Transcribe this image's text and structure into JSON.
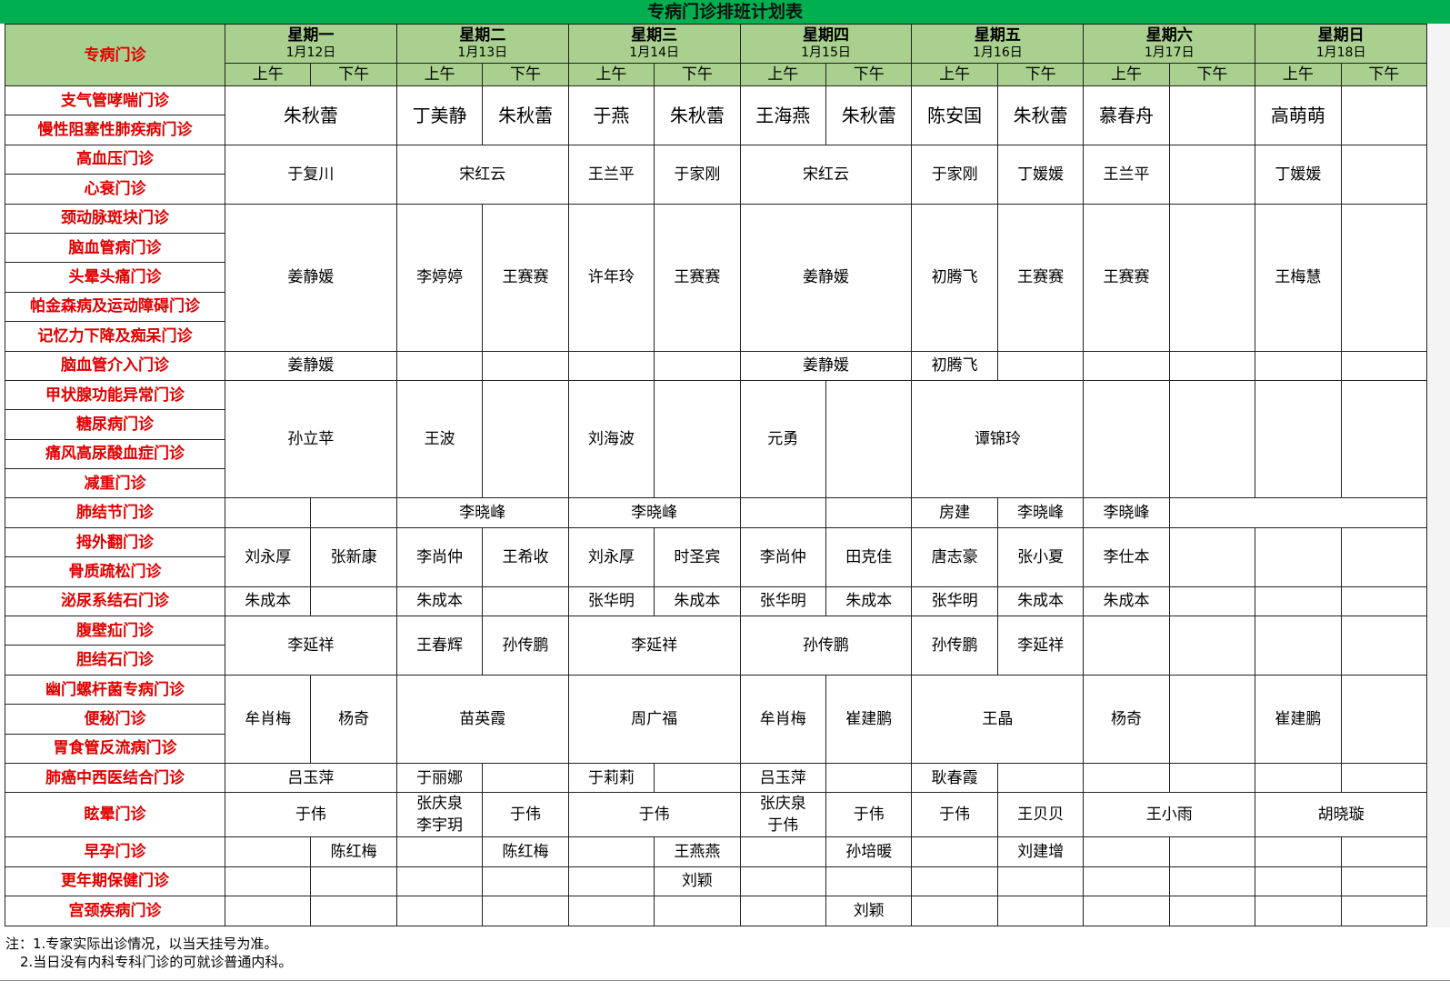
{
  "title": "专病门诊排班计划表",
  "corner_label": "专病门诊",
  "days": [
    {
      "name": "星期一",
      "date": "1月12日"
    },
    {
      "name": "星期二",
      "date": "1月13日"
    },
    {
      "name": "星期三",
      "date": "1月14日"
    },
    {
      "name": "星期四",
      "date": "1月15日"
    },
    {
      "name": "星期五",
      "date": "1月16日"
    },
    {
      "name": "星期六",
      "date": "1月17日"
    },
    {
      "name": "星期日",
      "date": "1月18日"
    }
  ],
  "sessions": [
    "上午",
    "下午"
  ],
  "clinics": [
    "支气管哮喘门诊",
    "慢性阻塞性肺疾病门诊",
    "高血压门诊",
    "心衰门诊",
    "颈动脉斑块门诊",
    "脑血管病门诊",
    "头晕头痛门诊",
    "帕金森病及运动障碍门诊",
    "记忆力下降及痴呆门诊",
    "脑血管介入门诊",
    "甲状腺功能异常门诊",
    "糖尿病门诊",
    "痛风高尿酸血症门诊",
    "减重门诊",
    "肺结节门诊",
    "拇外翻门诊",
    "骨质疏松门诊",
    "泌尿系结石门诊",
    "腹壁疝门诊",
    "胆结石门诊",
    "幽门螺杆菌专病门诊",
    "便秘门诊",
    "胃食管反流病门诊",
    "肺癌中西医结合门诊",
    "眩晕门诊",
    "早孕门诊",
    "更年期保健门诊",
    "宫颈疾病门诊"
  ],
  "schedule": [
    {
      "r": [
        0,
        1
      ],
      "c": [
        0,
        1
      ],
      "text": "朱秋蕾"
    },
    {
      "r": [
        0,
        1
      ],
      "c": [
        2,
        2
      ],
      "text": "丁美静"
    },
    {
      "r": [
        0,
        1
      ],
      "c": [
        3,
        3
      ],
      "text": "朱秋蕾"
    },
    {
      "r": [
        0,
        1
      ],
      "c": [
        4,
        4
      ],
      "text": "于燕"
    },
    {
      "r": [
        0,
        1
      ],
      "c": [
        5,
        5
      ],
      "text": "朱秋蕾"
    },
    {
      "r": [
        0,
        1
      ],
      "c": [
        6,
        6
      ],
      "text": "王海燕"
    },
    {
      "r": [
        0,
        1
      ],
      "c": [
        7,
        7
      ],
      "text": "朱秋蕾"
    },
    {
      "r": [
        0,
        1
      ],
      "c": [
        8,
        8
      ],
      "text": "陈安国"
    },
    {
      "r": [
        0,
        1
      ],
      "c": [
        9,
        9
      ],
      "text": "朱秋蕾"
    },
    {
      "r": [
        0,
        1
      ],
      "c": [
        10,
        10
      ],
      "text": "慕春舟"
    },
    {
      "r": [
        0,
        1
      ],
      "c": [
        11,
        11
      ],
      "text": ""
    },
    {
      "r": [
        0,
        1
      ],
      "c": [
        12,
        12
      ],
      "text": "高萌萌"
    },
    {
      "r": [
        0,
        1
      ],
      "c": [
        13,
        13
      ],
      "text": ""
    },
    {
      "r": [
        2,
        3
      ],
      "c": [
        0,
        1
      ],
      "text": "于复川"
    },
    {
      "r": [
        2,
        3
      ],
      "c": [
        2,
        3
      ],
      "text": "宋红云"
    },
    {
      "r": [
        2,
        3
      ],
      "c": [
        4,
        4
      ],
      "text": "王兰平"
    },
    {
      "r": [
        2,
        3
      ],
      "c": [
        5,
        5
      ],
      "text": "于家刚"
    },
    {
      "r": [
        2,
        3
      ],
      "c": [
        6,
        7
      ],
      "text": "宋红云"
    },
    {
      "r": [
        2,
        3
      ],
      "c": [
        8,
        8
      ],
      "text": "于家刚"
    },
    {
      "r": [
        2,
        3
      ],
      "c": [
        9,
        9
      ],
      "text": "丁媛媛"
    },
    {
      "r": [
        2,
        3
      ],
      "c": [
        10,
        10
      ],
      "text": "王兰平"
    },
    {
      "r": [
        2,
        3
      ],
      "c": [
        11,
        11
      ],
      "text": ""
    },
    {
      "r": [
        2,
        3
      ],
      "c": [
        12,
        12
      ],
      "text": "丁媛媛"
    },
    {
      "r": [
        2,
        3
      ],
      "c": [
        13,
        13
      ],
      "text": ""
    },
    {
      "r": [
        4,
        8
      ],
      "c": [
        0,
        1
      ],
      "text": "姜静媛"
    },
    {
      "r": [
        4,
        8
      ],
      "c": [
        2,
        2
      ],
      "text": "李婷婷"
    },
    {
      "r": [
        4,
        8
      ],
      "c": [
        3,
        3
      ],
      "text": "王赛赛"
    },
    {
      "r": [
        4,
        8
      ],
      "c": [
        4,
        4
      ],
      "text": "许年玲"
    },
    {
      "r": [
        4,
        8
      ],
      "c": [
        5,
        5
      ],
      "text": "王赛赛"
    },
    {
      "r": [
        4,
        8
      ],
      "c": [
        6,
        7
      ],
      "text": "姜静媛"
    },
    {
      "r": [
        4,
        8
      ],
      "c": [
        8,
        8
      ],
      "text": "初腾飞"
    },
    {
      "r": [
        4,
        8
      ],
      "c": [
        9,
        9
      ],
      "text": "王赛赛"
    },
    {
      "r": [
        4,
        8
      ],
      "c": [
        10,
        10
      ],
      "text": "王赛赛"
    },
    {
      "r": [
        4,
        8
      ],
      "c": [
        11,
        11
      ],
      "text": ""
    },
    {
      "r": [
        4,
        8
      ],
      "c": [
        12,
        12
      ],
      "text": "王梅慧"
    },
    {
      "r": [
        4,
        8
      ],
      "c": [
        13,
        13
      ],
      "text": ""
    },
    {
      "r": [
        9,
        9
      ],
      "c": [
        0,
        1
      ],
      "text": "姜静媛"
    },
    {
      "r": [
        9,
        9
      ],
      "c": [
        6,
        7
      ],
      "text": "姜静媛"
    },
    {
      "r": [
        9,
        9
      ],
      "c": [
        8,
        8
      ],
      "text": "初腾飞"
    },
    {
      "r": [
        10,
        13
      ],
      "c": [
        0,
        1
      ],
      "text": "孙立苹"
    },
    {
      "r": [
        10,
        13
      ],
      "c": [
        2,
        2
      ],
      "text": "王波"
    },
    {
      "r": [
        10,
        13
      ],
      "c": [
        3,
        3
      ],
      "text": ""
    },
    {
      "r": [
        10,
        13
      ],
      "c": [
        4,
        4
      ],
      "text": "刘海波"
    },
    {
      "r": [
        10,
        13
      ],
      "c": [
        5,
        5
      ],
      "text": ""
    },
    {
      "r": [
        10,
        13
      ],
      "c": [
        6,
        6
      ],
      "text": "元勇"
    },
    {
      "r": [
        10,
        13
      ],
      "c": [
        7,
        7
      ],
      "text": ""
    },
    {
      "r": [
        10,
        13
      ],
      "c": [
        8,
        9
      ],
      "text": "谭锦玲"
    },
    {
      "r": [
        10,
        13
      ],
      "c": [
        10,
        10
      ],
      "text": ""
    },
    {
      "r": [
        10,
        13
      ],
      "c": [
        11,
        11
      ],
      "text": ""
    },
    {
      "r": [
        10,
        13
      ],
      "c": [
        12,
        12
      ],
      "text": ""
    },
    {
      "r": [
        10,
        13
      ],
      "c": [
        13,
        13
      ],
      "text": ""
    },
    {
      "r": [
        14,
        14
      ],
      "c": [
        2,
        3
      ],
      "text": "李晓峰"
    },
    {
      "r": [
        14,
        14
      ],
      "c": [
        4,
        5
      ],
      "text": "李晓峰"
    },
    {
      "r": [
        14,
        14
      ],
      "c": [
        8,
        8
      ],
      "text": "房建"
    },
    {
      "r": [
        14,
        14
      ],
      "c": [
        9,
        9
      ],
      "text": "李晓峰"
    },
    {
      "r": [
        14,
        14
      ],
      "c": [
        10,
        10
      ],
      "text": "李晓峰"
    },
    {
      "r": [
        14,
        14
      ],
      "c": [
        11,
        13
      ],
      "text": ""
    },
    {
      "r": [
        15,
        16
      ],
      "c": [
        0,
        0
      ],
      "text": "刘永厚"
    },
    {
      "r": [
        15,
        16
      ],
      "c": [
        1,
        1
      ],
      "text": "张新康"
    },
    {
      "r": [
        15,
        16
      ],
      "c": [
        2,
        2
      ],
      "text": "李尚仲"
    },
    {
      "r": [
        15,
        16
      ],
      "c": [
        3,
        3
      ],
      "text": "王希收"
    },
    {
      "r": [
        15,
        16
      ],
      "c": [
        4,
        4
      ],
      "text": "刘永厚"
    },
    {
      "r": [
        15,
        16
      ],
      "c": [
        5,
        5
      ],
      "text": "时圣宾"
    },
    {
      "r": [
        15,
        16
      ],
      "c": [
        6,
        6
      ],
      "text": "李尚仲"
    },
    {
      "r": [
        15,
        16
      ],
      "c": [
        7,
        7
      ],
      "text": "田克佳"
    },
    {
      "r": [
        15,
        16
      ],
      "c": [
        8,
        8
      ],
      "text": "唐志豪"
    },
    {
      "r": [
        15,
        16
      ],
      "c": [
        9,
        9
      ],
      "text": "张小夏"
    },
    {
      "r": [
        15,
        16
      ],
      "c": [
        10,
        10
      ],
      "text": "李仕本"
    },
    {
      "r": [
        15,
        16
      ],
      "c": [
        11,
        11
      ],
      "text": ""
    },
    {
      "r": [
        15,
        16
      ],
      "c": [
        12,
        12
      ],
      "text": ""
    },
    {
      "r": [
        15,
        16
      ],
      "c": [
        13,
        13
      ],
      "text": ""
    },
    {
      "r": [
        17,
        17
      ],
      "c": [
        0,
        0
      ],
      "text": "朱成本"
    },
    {
      "r": [
        17,
        17
      ],
      "c": [
        2,
        2
      ],
      "text": "朱成本"
    },
    {
      "r": [
        17,
        17
      ],
      "c": [
        4,
        4
      ],
      "text": "张华明"
    },
    {
      "r": [
        17,
        17
      ],
      "c": [
        5,
        5
      ],
      "text": "朱成本"
    },
    {
      "r": [
        17,
        17
      ],
      "c": [
        6,
        6
      ],
      "text": "张华明"
    },
    {
      "r": [
        17,
        17
      ],
      "c": [
        7,
        7
      ],
      "text": "朱成本"
    },
    {
      "r": [
        17,
        17
      ],
      "c": [
        8,
        8
      ],
      "text": "张华明"
    },
    {
      "r": [
        17,
        17
      ],
      "c": [
        9,
        9
      ],
      "text": "朱成本"
    },
    {
      "r": [
        17,
        17
      ],
      "c": [
        10,
        10
      ],
      "text": "朱成本"
    },
    {
      "r": [
        18,
        19
      ],
      "c": [
        0,
        1
      ],
      "text": "李延祥"
    },
    {
      "r": [
        18,
        19
      ],
      "c": [
        2,
        2
      ],
      "text": "王春辉"
    },
    {
      "r": [
        18,
        19
      ],
      "c": [
        3,
        3
      ],
      "text": "孙传鹏"
    },
    {
      "r": [
        18,
        19
      ],
      "c": [
        4,
        5
      ],
      "text": "李延祥"
    },
    {
      "r": [
        18,
        19
      ],
      "c": [
        6,
        7
      ],
      "text": "孙传鹏"
    },
    {
      "r": [
        18,
        19
      ],
      "c": [
        8,
        8
      ],
      "text": "孙传鹏"
    },
    {
      "r": [
        18,
        19
      ],
      "c": [
        9,
        9
      ],
      "text": "李延祥"
    },
    {
      "r": [
        18,
        19
      ],
      "c": [
        10,
        10
      ],
      "text": ""
    },
    {
      "r": [
        18,
        19
      ],
      "c": [
        11,
        11
      ],
      "text": ""
    },
    {
      "r": [
        18,
        19
      ],
      "c": [
        12,
        12
      ],
      "text": ""
    },
    {
      "r": [
        18,
        19
      ],
      "c": [
        13,
        13
      ],
      "text": ""
    },
    {
      "r": [
        20,
        22
      ],
      "c": [
        0,
        0
      ],
      "text": "牟肖梅"
    },
    {
      "r": [
        20,
        22
      ],
      "c": [
        1,
        1
      ],
      "text": "杨奇"
    },
    {
      "r": [
        20,
        22
      ],
      "c": [
        2,
        3
      ],
      "text": "苗英霞"
    },
    {
      "r": [
        20,
        22
      ],
      "c": [
        4,
        5
      ],
      "text": "周广福"
    },
    {
      "r": [
        20,
        22
      ],
      "c": [
        6,
        6
      ],
      "text": "牟肖梅"
    },
    {
      "r": [
        20,
        22
      ],
      "c": [
        7,
        7
      ],
      "text": "崔建鹏"
    },
    {
      "r": [
        20,
        22
      ],
      "c": [
        8,
        9
      ],
      "text": "王晶"
    },
    {
      "r": [
        20,
        22
      ],
      "c": [
        10,
        10
      ],
      "text": "杨奇"
    },
    {
      "r": [
        20,
        22
      ],
      "c": [
        11,
        11
      ],
      "text": ""
    },
    {
      "r": [
        20,
        22
      ],
      "c": [
        12,
        12
      ],
      "text": "崔建鹏"
    },
    {
      "r": [
        20,
        22
      ],
      "c": [
        13,
        13
      ],
      "text": ""
    },
    {
      "r": [
        23,
        23
      ],
      "c": [
        0,
        1
      ],
      "text": "吕玉萍"
    },
    {
      "r": [
        23,
        23
      ],
      "c": [
        2,
        2
      ],
      "text": "于丽娜"
    },
    {
      "r": [
        23,
        23
      ],
      "c": [
        4,
        4
      ],
      "text": "于莉莉"
    },
    {
      "r": [
        23,
        23
      ],
      "c": [
        6,
        6
      ],
      "text": "吕玉萍"
    },
    {
      "r": [
        23,
        23
      ],
      "c": [
        8,
        8
      ],
      "text": "耿春霞"
    },
    {
      "r": [
        24,
        24
      ],
      "c": [
        0,
        1
      ],
      "text": "于伟"
    },
    {
      "r": [
        24,
        24
      ],
      "c": [
        2,
        2
      ],
      "text": "张庆泉\n李宇玥"
    },
    {
      "r": [
        24,
        24
      ],
      "c": [
        3,
        3
      ],
      "text": "于伟"
    },
    {
      "r": [
        24,
        24
      ],
      "c": [
        4,
        5
      ],
      "text": "于伟"
    },
    {
      "r": [
        24,
        24
      ],
      "c": [
        6,
        6
      ],
      "text": "张庆泉\n于伟"
    },
    {
      "r": [
        24,
        24
      ],
      "c": [
        7,
        7
      ],
      "text": "于伟"
    },
    {
      "r": [
        24,
        24
      ],
      "c": [
        8,
        8
      ],
      "text": "于伟"
    },
    {
      "r": [
        24,
        24
      ],
      "c": [
        9,
        9
      ],
      "text": "王贝贝"
    },
    {
      "r": [
        24,
        24
      ],
      "c": [
        10,
        11
      ],
      "text": "王小雨"
    },
    {
      "r": [
        24,
        24
      ],
      "c": [
        12,
        13
      ],
      "text": "胡晓璇"
    },
    {
      "r": [
        25,
        25
      ],
      "c": [
        1,
        1
      ],
      "text": "陈红梅"
    },
    {
      "r": [
        25,
        25
      ],
      "c": [
        3,
        3
      ],
      "text": "陈红梅"
    },
    {
      "r": [
        25,
        25
      ],
      "c": [
        5,
        5
      ],
      "text": "王燕燕"
    },
    {
      "r": [
        25,
        25
      ],
      "c": [
        7,
        7
      ],
      "text": "孙培暖"
    },
    {
      "r": [
        25,
        25
      ],
      "c": [
        9,
        9
      ],
      "text": "刘建增"
    },
    {
      "r": [
        26,
        26
      ],
      "c": [
        5,
        5
      ],
      "text": "刘颖"
    },
    {
      "r": [
        27,
        27
      ],
      "c": [
        7,
        7
      ],
      "text": "刘颖"
    }
  ],
  "notes": [
    "注：1.专家实际出诊情况，以当天挂号为准。",
    "2.当日没有内科专科门诊的可就诊普通内科。"
  ],
  "colors": {
    "title_bar": "#00b050",
    "header": "#a9d08e",
    "clinic_text": "#e00000"
  }
}
